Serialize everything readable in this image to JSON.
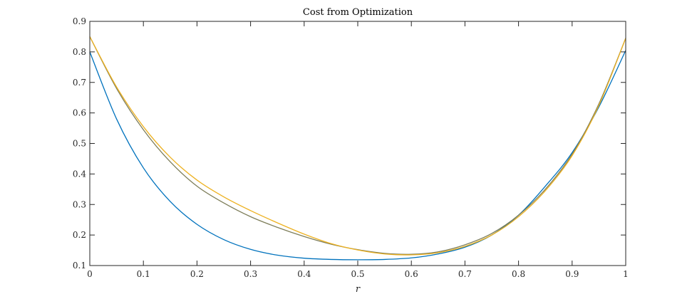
{
  "chart_data": {
    "type": "line",
    "title": "Cost from Optimization",
    "xlabel": "r",
    "ylabel": "",
    "xlim": [
      0,
      1
    ],
    "ylim": [
      0.1,
      0.9
    ],
    "xticks": [
      "0",
      "0.1",
      "0.2",
      "0.3",
      "0.4",
      "0.5",
      "0.6",
      "0.7",
      "0.8",
      "0.9",
      "1"
    ],
    "yticks": [
      "0.1",
      "0.2",
      "0.3",
      "0.4",
      "0.5",
      "0.6",
      "0.7",
      "0.8",
      "0.9"
    ],
    "grid": false,
    "box": true,
    "series": [
      {
        "color": "#0072BD",
        "x": [
          0,
          0.05,
          0.1,
          0.15,
          0.2,
          0.25,
          0.3,
          0.35,
          0.4,
          0.45,
          0.5,
          0.55,
          0.6,
          0.65,
          0.7,
          0.75,
          0.8,
          0.85,
          0.9,
          0.95,
          1.0
        ],
        "y": [
          0.8,
          0.58,
          0.42,
          0.31,
          0.235,
          0.185,
          0.153,
          0.134,
          0.124,
          0.12,
          0.119,
          0.12,
          0.125,
          0.138,
          0.16,
          0.2,
          0.265,
          0.36,
          0.47,
          0.62,
          0.805
        ]
      },
      {
        "color": "#7E7E5A",
        "x": [
          0,
          0.05,
          0.1,
          0.15,
          0.2,
          0.25,
          0.3,
          0.35,
          0.4,
          0.45,
          0.5,
          0.55,
          0.6,
          0.65,
          0.7,
          0.75,
          0.8,
          0.85,
          0.9,
          0.95,
          1.0
        ],
        "y": [
          0.85,
          0.68,
          0.545,
          0.44,
          0.36,
          0.305,
          0.26,
          0.225,
          0.195,
          0.17,
          0.152,
          0.14,
          0.137,
          0.145,
          0.168,
          0.205,
          0.265,
          0.35,
          0.465,
          0.63,
          0.845
        ]
      },
      {
        "color": "#EDB120",
        "x": [
          0,
          0.05,
          0.1,
          0.15,
          0.2,
          0.25,
          0.3,
          0.35,
          0.4,
          0.45,
          0.5,
          0.55,
          0.6,
          0.65,
          0.7,
          0.75,
          0.8,
          0.85,
          0.9,
          0.95,
          1.0
        ],
        "y": [
          0.85,
          0.685,
          0.555,
          0.455,
          0.38,
          0.325,
          0.28,
          0.24,
          0.203,
          0.172,
          0.151,
          0.138,
          0.135,
          0.142,
          0.163,
          0.2,
          0.26,
          0.345,
          0.46,
          0.625,
          0.845
        ]
      }
    ]
  }
}
